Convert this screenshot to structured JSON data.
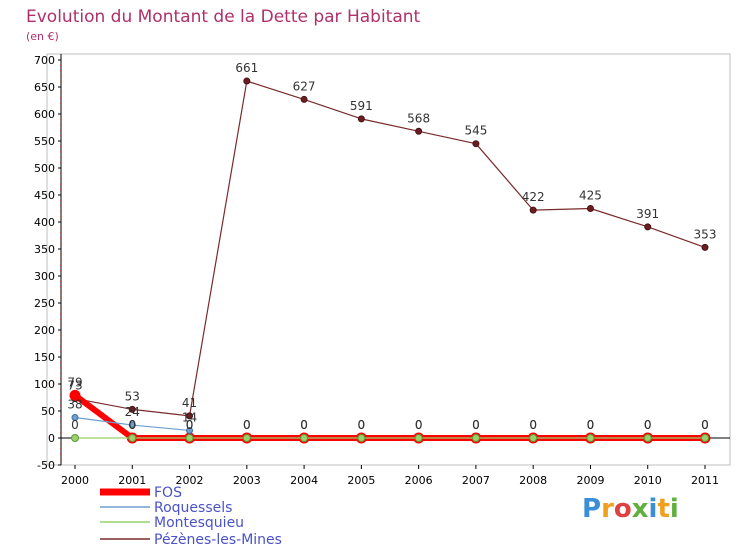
{
  "chart_data": {
    "type": "line",
    "title": "Evolution du Montant de la Dette par Habitant",
    "subtitle": "(en €)",
    "xlabel": "",
    "ylabel": "",
    "x": [
      "2000",
      "2001",
      "2002",
      "2003",
      "2004",
      "2005",
      "2006",
      "2007",
      "2008",
      "2009",
      "2010",
      "2011"
    ],
    "ylim": [
      -50,
      700
    ],
    "yticks": [
      -50,
      0,
      50,
      100,
      150,
      200,
      250,
      300,
      350,
      400,
      450,
      500,
      550,
      600,
      650,
      700
    ],
    "grid": false,
    "legend_position": "bottom-left",
    "series": [
      {
        "name": "FOS",
        "color": "#ff0000",
        "values": [
          79,
          0,
          0,
          0,
          0,
          0,
          0,
          0,
          0,
          0,
          0,
          0
        ],
        "labels": [
          "79",
          "0",
          "0",
          "0",
          "0",
          "0",
          "0",
          "0",
          "0",
          "0",
          "0",
          "0"
        ]
      },
      {
        "name": "Roquessels",
        "color": "#6f9fcf",
        "values": [
          38,
          24,
          14,
          null,
          null,
          null,
          null,
          null,
          null,
          null,
          null,
          null
        ],
        "labels": [
          "38",
          "24",
          "14",
          "",
          "",
          "",
          "",
          "",
          "",
          "",
          "",
          ""
        ]
      },
      {
        "name": "Montesquieu",
        "color": "#99d16a",
        "values": [
          0,
          0,
          0,
          0,
          0,
          0,
          0,
          0,
          0,
          0,
          0,
          0
        ],
        "labels": [
          "0",
          "0",
          "0",
          "0",
          "0",
          "0",
          "0",
          "0",
          "0",
          "0",
          "0",
          "0"
        ]
      },
      {
        "name": "Pézènes-les-Mines",
        "color": "#7a2a2a",
        "values": [
          73,
          53,
          41,
          661,
          627,
          591,
          568,
          545,
          422,
          425,
          391,
          353
        ],
        "labels": [
          "73",
          "53",
          "41",
          "661",
          "627",
          "591",
          "568",
          "545",
          "422",
          "425",
          "391",
          "353"
        ]
      }
    ]
  },
  "watermark": {
    "text": "Proxiti"
  }
}
